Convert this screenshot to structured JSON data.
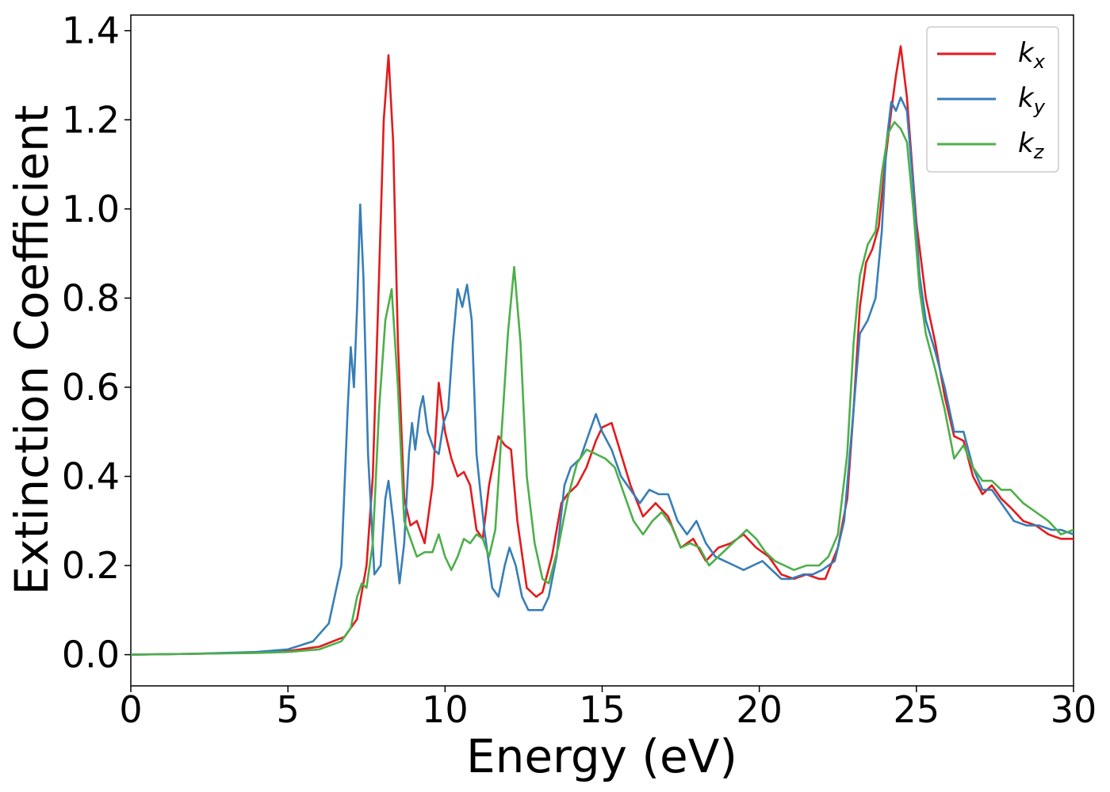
{
  "chart_data": {
    "type": "line",
    "title": "",
    "xlabel": "Energy (eV)",
    "ylabel": "Extinction Coefficient",
    "xlim": [
      0,
      30
    ],
    "ylim": [
      -0.07,
      1.435
    ],
    "xticks": [
      0,
      5,
      10,
      15,
      20,
      25,
      30
    ],
    "xtick_labels": [
      "0",
      "5",
      "10",
      "15",
      "20",
      "25",
      "30"
    ],
    "yticks": [
      0.0,
      0.2,
      0.4,
      0.6,
      0.8,
      1.0,
      1.2,
      1.4
    ],
    "ytick_labels": [
      "0.0",
      "0.2",
      "0.4",
      "0.6",
      "0.8",
      "1.0",
      "1.2",
      "1.4"
    ],
    "grid": false,
    "legend_position": "top-right",
    "series": [
      {
        "name": "k_x",
        "label_main": "k",
        "label_sub": "x",
        "color": "#e41a1c",
        "points": [
          [
            0,
            0.0
          ],
          [
            2,
            0.002
          ],
          [
            4,
            0.005
          ],
          [
            5,
            0.008
          ],
          [
            6,
            0.018
          ],
          [
            6.8,
            0.04
          ],
          [
            7.2,
            0.08
          ],
          [
            7.5,
            0.2
          ],
          [
            7.7,
            0.4
          ],
          [
            7.9,
            0.85
          ],
          [
            8.05,
            1.2
          ],
          [
            8.2,
            1.345
          ],
          [
            8.35,
            1.15
          ],
          [
            8.5,
            0.7
          ],
          [
            8.7,
            0.35
          ],
          [
            8.9,
            0.29
          ],
          [
            9.1,
            0.3
          ],
          [
            9.35,
            0.25
          ],
          [
            9.6,
            0.38
          ],
          [
            9.8,
            0.61
          ],
          [
            10.0,
            0.5
          ],
          [
            10.2,
            0.44
          ],
          [
            10.4,
            0.4
          ],
          [
            10.6,
            0.41
          ],
          [
            10.8,
            0.38
          ],
          [
            11.0,
            0.28
          ],
          [
            11.2,
            0.26
          ],
          [
            11.4,
            0.38
          ],
          [
            11.7,
            0.49
          ],
          [
            11.9,
            0.47
          ],
          [
            12.1,
            0.46
          ],
          [
            12.3,
            0.3
          ],
          [
            12.6,
            0.15
          ],
          [
            12.9,
            0.13
          ],
          [
            13.1,
            0.14
          ],
          [
            13.4,
            0.22
          ],
          [
            13.7,
            0.34
          ],
          [
            13.9,
            0.36
          ],
          [
            14.2,
            0.38
          ],
          [
            14.5,
            0.42
          ],
          [
            14.8,
            0.48
          ],
          [
            15.0,
            0.51
          ],
          [
            15.3,
            0.52
          ],
          [
            15.6,
            0.45
          ],
          [
            15.9,
            0.38
          ],
          [
            16.3,
            0.31
          ],
          [
            16.7,
            0.34
          ],
          [
            17.1,
            0.31
          ],
          [
            17.5,
            0.24
          ],
          [
            17.9,
            0.26
          ],
          [
            18.3,
            0.21
          ],
          [
            18.7,
            0.24
          ],
          [
            19.1,
            0.25
          ],
          [
            19.5,
            0.27
          ],
          [
            19.9,
            0.24
          ],
          [
            20.3,
            0.22
          ],
          [
            20.7,
            0.18
          ],
          [
            21.1,
            0.17
          ],
          [
            21.5,
            0.18
          ],
          [
            21.9,
            0.17
          ],
          [
            22.1,
            0.17
          ],
          [
            22.5,
            0.24
          ],
          [
            22.8,
            0.35
          ],
          [
            23.0,
            0.55
          ],
          [
            23.2,
            0.78
          ],
          [
            23.4,
            0.88
          ],
          [
            23.6,
            0.91
          ],
          [
            23.8,
            0.96
          ],
          [
            24.0,
            1.1
          ],
          [
            24.2,
            1.22
          ],
          [
            24.35,
            1.3
          ],
          [
            24.5,
            1.365
          ],
          [
            24.7,
            1.25
          ],
          [
            25.0,
            0.97
          ],
          [
            25.3,
            0.8
          ],
          [
            25.6,
            0.7
          ],
          [
            25.9,
            0.58
          ],
          [
            26.2,
            0.49
          ],
          [
            26.5,
            0.48
          ],
          [
            26.8,
            0.4
          ],
          [
            27.1,
            0.36
          ],
          [
            27.4,
            0.38
          ],
          [
            27.7,
            0.35
          ],
          [
            28.0,
            0.33
          ],
          [
            28.4,
            0.3
          ],
          [
            28.8,
            0.29
          ],
          [
            29.2,
            0.27
          ],
          [
            29.6,
            0.26
          ],
          [
            30,
            0.26
          ]
        ]
      },
      {
        "name": "k_y",
        "label_main": "k",
        "label_sub": "y",
        "color": "#377eb8",
        "points": [
          [
            0,
            0.0
          ],
          [
            2,
            0.002
          ],
          [
            4,
            0.006
          ],
          [
            5,
            0.012
          ],
          [
            5.8,
            0.03
          ],
          [
            6.3,
            0.07
          ],
          [
            6.7,
            0.2
          ],
          [
            6.9,
            0.55
          ],
          [
            7.0,
            0.69
          ],
          [
            7.1,
            0.6
          ],
          [
            7.2,
            0.78
          ],
          [
            7.3,
            1.01
          ],
          [
            7.4,
            0.85
          ],
          [
            7.55,
            0.45
          ],
          [
            7.75,
            0.18
          ],
          [
            7.95,
            0.2
          ],
          [
            8.1,
            0.35
          ],
          [
            8.2,
            0.39
          ],
          [
            8.35,
            0.3
          ],
          [
            8.55,
            0.16
          ],
          [
            8.7,
            0.25
          ],
          [
            8.85,
            0.45
          ],
          [
            8.95,
            0.52
          ],
          [
            9.05,
            0.46
          ],
          [
            9.2,
            0.55
          ],
          [
            9.3,
            0.58
          ],
          [
            9.45,
            0.5
          ],
          [
            9.65,
            0.46
          ],
          [
            9.8,
            0.45
          ],
          [
            9.95,
            0.52
          ],
          [
            10.1,
            0.55
          ],
          [
            10.25,
            0.7
          ],
          [
            10.4,
            0.82
          ],
          [
            10.55,
            0.78
          ],
          [
            10.7,
            0.83
          ],
          [
            10.85,
            0.75
          ],
          [
            11.0,
            0.45
          ],
          [
            11.25,
            0.28
          ],
          [
            11.5,
            0.15
          ],
          [
            11.7,
            0.13
          ],
          [
            11.9,
            0.2
          ],
          [
            12.05,
            0.24
          ],
          [
            12.25,
            0.2
          ],
          [
            12.45,
            0.13
          ],
          [
            12.65,
            0.1
          ],
          [
            12.85,
            0.1
          ],
          [
            13.1,
            0.1
          ],
          [
            13.3,
            0.13
          ],
          [
            13.55,
            0.22
          ],
          [
            13.8,
            0.38
          ],
          [
            14.0,
            0.42
          ],
          [
            14.3,
            0.44
          ],
          [
            14.6,
            0.5
          ],
          [
            14.8,
            0.54
          ],
          [
            15.0,
            0.5
          ],
          [
            15.3,
            0.46
          ],
          [
            15.6,
            0.4
          ],
          [
            15.9,
            0.37
          ],
          [
            16.2,
            0.34
          ],
          [
            16.5,
            0.37
          ],
          [
            16.8,
            0.36
          ],
          [
            17.1,
            0.36
          ],
          [
            17.4,
            0.3
          ],
          [
            17.7,
            0.27
          ],
          [
            18.0,
            0.3
          ],
          [
            18.3,
            0.25
          ],
          [
            18.6,
            0.22
          ],
          [
            18.9,
            0.21
          ],
          [
            19.2,
            0.2
          ],
          [
            19.5,
            0.19
          ],
          [
            19.8,
            0.2
          ],
          [
            20.1,
            0.21
          ],
          [
            20.4,
            0.19
          ],
          [
            20.7,
            0.17
          ],
          [
            21.0,
            0.17
          ],
          [
            21.4,
            0.18
          ],
          [
            21.7,
            0.18
          ],
          [
            22.0,
            0.19
          ],
          [
            22.4,
            0.21
          ],
          [
            22.7,
            0.3
          ],
          [
            23.0,
            0.55
          ],
          [
            23.2,
            0.72
          ],
          [
            23.45,
            0.75
          ],
          [
            23.7,
            0.8
          ],
          [
            23.9,
            0.95
          ],
          [
            24.05,
            1.15
          ],
          [
            24.2,
            1.24
          ],
          [
            24.35,
            1.22
          ],
          [
            24.5,
            1.25
          ],
          [
            24.7,
            1.22
          ],
          [
            24.9,
            1.05
          ],
          [
            25.1,
            0.85
          ],
          [
            25.3,
            0.75
          ],
          [
            25.6,
            0.68
          ],
          [
            25.9,
            0.6
          ],
          [
            26.2,
            0.5
          ],
          [
            26.5,
            0.5
          ],
          [
            26.8,
            0.42
          ],
          [
            27.1,
            0.37
          ],
          [
            27.4,
            0.37
          ],
          [
            27.8,
            0.33
          ],
          [
            28.1,
            0.3
          ],
          [
            28.5,
            0.29
          ],
          [
            28.9,
            0.29
          ],
          [
            29.3,
            0.28
          ],
          [
            29.6,
            0.28
          ],
          [
            30,
            0.27
          ]
        ]
      },
      {
        "name": "k_z",
        "label_main": "k",
        "label_sub": "z",
        "color": "#4daf4a",
        "points": [
          [
            0,
            0.0
          ],
          [
            2,
            0.002
          ],
          [
            4,
            0.004
          ],
          [
            5,
            0.006
          ],
          [
            6,
            0.012
          ],
          [
            6.7,
            0.03
          ],
          [
            7.0,
            0.06
          ],
          [
            7.2,
            0.13
          ],
          [
            7.35,
            0.16
          ],
          [
            7.5,
            0.15
          ],
          [
            7.7,
            0.25
          ],
          [
            7.9,
            0.55
          ],
          [
            8.1,
            0.75
          ],
          [
            8.3,
            0.82
          ],
          [
            8.5,
            0.6
          ],
          [
            8.7,
            0.3
          ],
          [
            8.9,
            0.26
          ],
          [
            9.1,
            0.22
          ],
          [
            9.35,
            0.23
          ],
          [
            9.6,
            0.23
          ],
          [
            9.8,
            0.27
          ],
          [
            10.0,
            0.22
          ],
          [
            10.2,
            0.19
          ],
          [
            10.4,
            0.22
          ],
          [
            10.6,
            0.26
          ],
          [
            10.8,
            0.25
          ],
          [
            11.0,
            0.27
          ],
          [
            11.2,
            0.26
          ],
          [
            11.4,
            0.22
          ],
          [
            11.6,
            0.28
          ],
          [
            11.8,
            0.5
          ],
          [
            12.0,
            0.72
          ],
          [
            12.2,
            0.87
          ],
          [
            12.4,
            0.7
          ],
          [
            12.6,
            0.4
          ],
          [
            12.85,
            0.25
          ],
          [
            13.1,
            0.17
          ],
          [
            13.3,
            0.16
          ],
          [
            13.6,
            0.24
          ],
          [
            13.9,
            0.35
          ],
          [
            14.2,
            0.43
          ],
          [
            14.5,
            0.46
          ],
          [
            14.8,
            0.45
          ],
          [
            15.1,
            0.44
          ],
          [
            15.4,
            0.42
          ],
          [
            15.7,
            0.36
          ],
          [
            16.0,
            0.3
          ],
          [
            16.3,
            0.27
          ],
          [
            16.6,
            0.3
          ],
          [
            16.9,
            0.32
          ],
          [
            17.2,
            0.29
          ],
          [
            17.5,
            0.24
          ],
          [
            17.8,
            0.25
          ],
          [
            18.1,
            0.24
          ],
          [
            18.4,
            0.2
          ],
          [
            18.7,
            0.22
          ],
          [
            19.0,
            0.24
          ],
          [
            19.3,
            0.26
          ],
          [
            19.6,
            0.28
          ],
          [
            19.9,
            0.26
          ],
          [
            20.2,
            0.23
          ],
          [
            20.5,
            0.21
          ],
          [
            20.8,
            0.2
          ],
          [
            21.1,
            0.19
          ],
          [
            21.5,
            0.2
          ],
          [
            21.9,
            0.2
          ],
          [
            22.2,
            0.22
          ],
          [
            22.5,
            0.27
          ],
          [
            22.8,
            0.45
          ],
          [
            23.0,
            0.7
          ],
          [
            23.2,
            0.85
          ],
          [
            23.45,
            0.92
          ],
          [
            23.7,
            0.95
          ],
          [
            23.9,
            1.08
          ],
          [
            24.1,
            1.17
          ],
          [
            24.3,
            1.195
          ],
          [
            24.5,
            1.18
          ],
          [
            24.7,
            1.15
          ],
          [
            24.9,
            1.0
          ],
          [
            25.1,
            0.82
          ],
          [
            25.3,
            0.72
          ],
          [
            25.6,
            0.64
          ],
          [
            25.9,
            0.55
          ],
          [
            26.2,
            0.44
          ],
          [
            26.5,
            0.47
          ],
          [
            26.8,
            0.42
          ],
          [
            27.1,
            0.39
          ],
          [
            27.4,
            0.39
          ],
          [
            27.7,
            0.37
          ],
          [
            28.0,
            0.37
          ],
          [
            28.4,
            0.34
          ],
          [
            28.8,
            0.32
          ],
          [
            29.2,
            0.3
          ],
          [
            29.6,
            0.27
          ],
          [
            30,
            0.28
          ]
        ]
      }
    ]
  }
}
